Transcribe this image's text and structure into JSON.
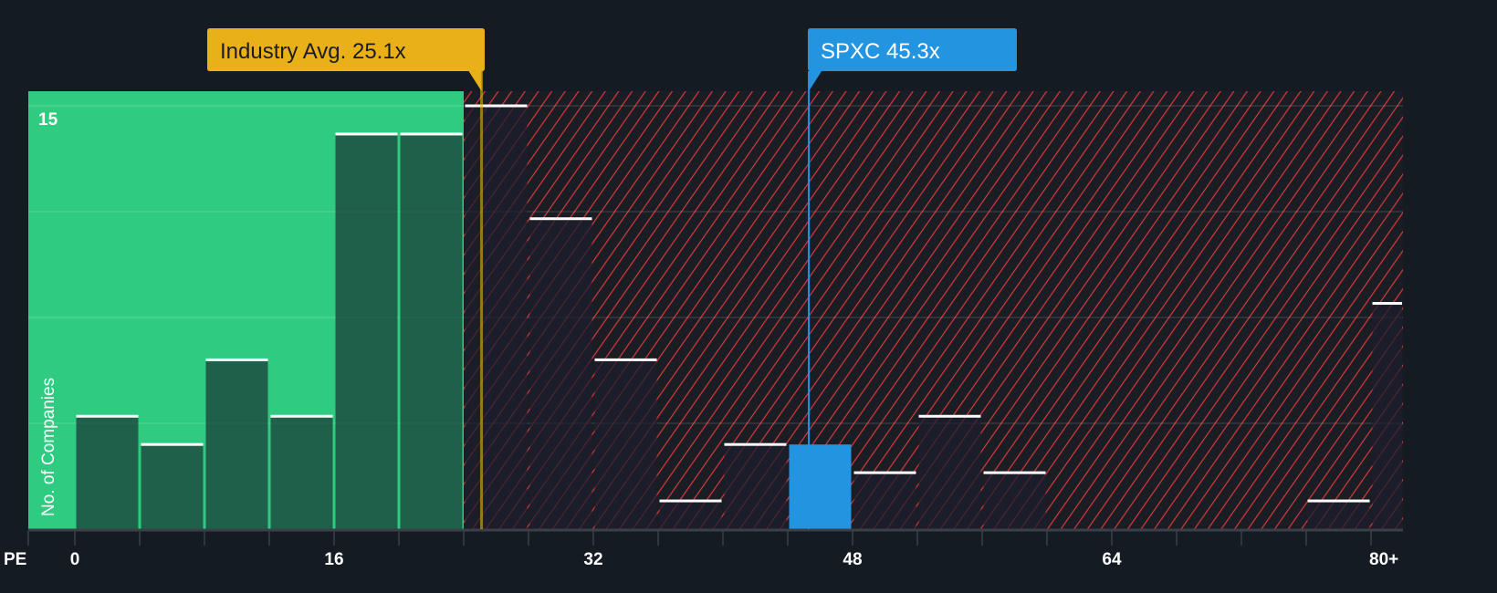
{
  "chart_data": {
    "type": "bar",
    "title": "",
    "xlabel": "PE",
    "ylabel": "No. of Companies",
    "bin_width": 4,
    "bins": [
      {
        "from": 0,
        "to": 4,
        "value": 4
      },
      {
        "from": 4,
        "to": 8,
        "value": 3
      },
      {
        "from": 8,
        "to": 12,
        "value": 6
      },
      {
        "from": 12,
        "to": 16,
        "value": 4
      },
      {
        "from": 16,
        "to": 20,
        "value": 14
      },
      {
        "from": 20,
        "to": 24,
        "value": 14
      },
      {
        "from": 24,
        "to": 28,
        "value": 15
      },
      {
        "from": 28,
        "to": 32,
        "value": 11
      },
      {
        "from": 32,
        "to": 36,
        "value": 6
      },
      {
        "from": 36,
        "to": 40,
        "value": 1
      },
      {
        "from": 40,
        "to": 44,
        "value": 3
      },
      {
        "from": 44,
        "to": 48,
        "value": 3,
        "highlight": true
      },
      {
        "from": 48,
        "to": 52,
        "value": 2
      },
      {
        "from": 52,
        "to": 56,
        "value": 4
      },
      {
        "from": 56,
        "to": 60,
        "value": 2
      },
      {
        "from": 60,
        "to": 64,
        "value": 0
      },
      {
        "from": 64,
        "to": 68,
        "value": 0
      },
      {
        "from": 68,
        "to": 72,
        "value": 0
      },
      {
        "from": 72,
        "to": 76,
        "value": 0
      },
      {
        "from": 76,
        "to": 80,
        "value": 1
      },
      {
        "from": 80,
        "to": 82,
        "value": 8
      }
    ],
    "xticks": [
      {
        "value": 0,
        "label": "0"
      },
      {
        "value": 16,
        "label": "16"
      },
      {
        "value": 32,
        "label": "32"
      },
      {
        "value": 48,
        "label": "48"
      },
      {
        "value": 64,
        "label": "64"
      },
      {
        "value": 80,
        "label": "80+"
      }
    ],
    "ytick_label": {
      "value": 15,
      "label": "15"
    },
    "xlim": [
      -2.9,
      82
    ],
    "ylim": [
      0,
      15.5
    ],
    "annotations": {
      "industry": {
        "label": "Industry Avg. 25.1x",
        "value": 25.1,
        "color": "#e9b018"
      },
      "company": {
        "label": "SPXC 45.3x",
        "value": 45.3,
        "color": "#2394e0"
      }
    },
    "fair_zone_end": 24,
    "colors": {
      "green": "#2fcb81",
      "bar_green": "#1f5a45",
      "hatch": "#e03b3b",
      "bg": "#151b23"
    }
  }
}
